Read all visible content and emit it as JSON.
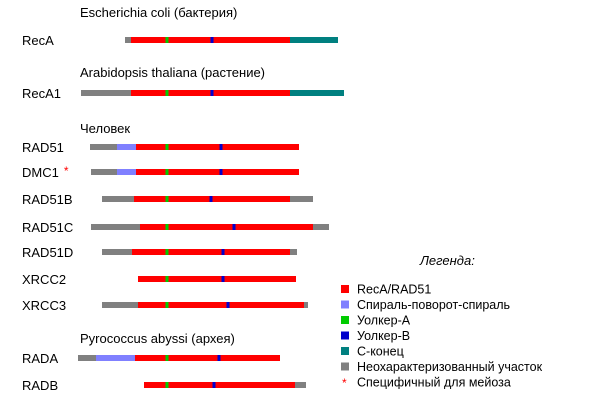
{
  "colors": {
    "reca_rad51": "#ff0000",
    "helix_turn_helix": "#8080ff",
    "walker_a": "#00cc00",
    "walker_b": "#0000cc",
    "c_terminus": "#008080",
    "uncharacterized": "#808080",
    "meiosis_star": "#ff0000"
  },
  "legend": {
    "title": "Легенда:",
    "items": [
      {
        "label": "RecA/RAD51",
        "color_key": "reca_rad51"
      },
      {
        "label": "Спираль-поворот-спираль",
        "color_key": "helix_turn_helix"
      },
      {
        "label": "Уолкер-А",
        "color_key": "walker_a"
      },
      {
        "label": "Уолкер-В",
        "color_key": "walker_b"
      },
      {
        "label": "С-конец",
        "color_key": "c_terminus"
      },
      {
        "label": "Неохарактеризованный участок",
        "color_key": "uncharacterized"
      },
      {
        "label": "Специфичный для мейоза",
        "marker": "*",
        "color_key": "meiosis_star"
      }
    ]
  },
  "groups": [
    {
      "title": "Escherichia coli (бактерия)",
      "proteins": [
        {
          "name": "RecA",
          "meiosis_specific": false,
          "segments": [
            {
              "domain": "uncharacterized",
              "start": 125,
              "end": 131
            },
            {
              "domain": "reca_rad51",
              "start": 131,
              "end": 290
            },
            {
              "domain": "c_terminus",
              "start": 290,
              "end": 338
            }
          ],
          "walker_a": 167,
          "walker_b": 212
        }
      ]
    },
    {
      "title": "Arabidopsis thaliana (растение)",
      "proteins": [
        {
          "name": "RecA1",
          "meiosis_specific": false,
          "segments": [
            {
              "domain": "uncharacterized",
              "start": 81,
              "end": 131
            },
            {
              "domain": "reca_rad51",
              "start": 131,
              "end": 290
            },
            {
              "domain": "c_terminus",
              "start": 290,
              "end": 344
            }
          ],
          "walker_a": 167,
          "walker_b": 212
        }
      ]
    },
    {
      "title": "Человек",
      "proteins": [
        {
          "name": "RAD51",
          "meiosis_specific": false,
          "segments": [
            {
              "domain": "uncharacterized",
              "start": 90,
              "end": 117
            },
            {
              "domain": "helix_turn_helix",
              "start": 117,
              "end": 136
            },
            {
              "domain": "reca_rad51",
              "start": 136,
              "end": 299
            }
          ],
          "walker_a": 167,
          "walker_b": 221
        },
        {
          "name": "DMC1",
          "meiosis_specific": true,
          "segments": [
            {
              "domain": "uncharacterized",
              "start": 91,
              "end": 117
            },
            {
              "domain": "helix_turn_helix",
              "start": 117,
              "end": 136
            },
            {
              "domain": "reca_rad51",
              "start": 136,
              "end": 299
            }
          ],
          "walker_a": 167,
          "walker_b": 221
        },
        {
          "name": "RAD51B",
          "meiosis_specific": false,
          "segments": [
            {
              "domain": "uncharacterized",
              "start": 102,
              "end": 134
            },
            {
              "domain": "reca_rad51",
              "start": 134,
              "end": 290
            },
            {
              "domain": "uncharacterized",
              "start": 290,
              "end": 313
            }
          ],
          "walker_a": 167,
          "walker_b": 211
        },
        {
          "name": "RAD51C",
          "meiosis_specific": false,
          "segments": [
            {
              "domain": "uncharacterized",
              "start": 91,
              "end": 140
            },
            {
              "domain": "reca_rad51",
              "start": 140,
              "end": 313
            },
            {
              "domain": "uncharacterized",
              "start": 313,
              "end": 329
            }
          ],
          "walker_a": 167,
          "walker_b": 234
        },
        {
          "name": "RAD51D",
          "meiosis_specific": false,
          "segments": [
            {
              "domain": "uncharacterized",
              "start": 102,
              "end": 132
            },
            {
              "domain": "reca_rad51",
              "start": 132,
              "end": 290
            },
            {
              "domain": "uncharacterized",
              "start": 290,
              "end": 297
            }
          ],
          "walker_a": 167,
          "walker_b": 223
        },
        {
          "name": "XRCC2",
          "meiosis_specific": false,
          "segments": [
            {
              "domain": "reca_rad51",
              "start": 138,
              "end": 296
            }
          ],
          "walker_a": 167,
          "walker_b": 223
        },
        {
          "name": "XRCC3",
          "meiosis_specific": false,
          "segments": [
            {
              "domain": "uncharacterized",
              "start": 102,
              "end": 138
            },
            {
              "domain": "reca_rad51",
              "start": 138,
              "end": 304
            },
            {
              "domain": "uncharacterized",
              "start": 304,
              "end": 308
            }
          ],
          "walker_a": 167,
          "walker_b": 228
        }
      ]
    },
    {
      "title": "Pyrococcus abyssi (архея)",
      "proteins": [
        {
          "name": "RADA",
          "meiosis_specific": false,
          "segments": [
            {
              "domain": "uncharacterized",
              "start": 78,
              "end": 96
            },
            {
              "domain": "helix_turn_helix",
              "start": 96,
              "end": 135
            },
            {
              "domain": "reca_rad51",
              "start": 135,
              "end": 280
            }
          ],
          "walker_a": 167,
          "walker_b": 219
        },
        {
          "name": "RADB",
          "meiosis_specific": false,
          "segments": [
            {
              "domain": "reca_rad51",
              "start": 144,
              "end": 295
            },
            {
              "domain": "uncharacterized",
              "start": 295,
              "end": 306
            }
          ],
          "walker_a": 167,
          "walker_b": 214
        }
      ]
    }
  ]
}
